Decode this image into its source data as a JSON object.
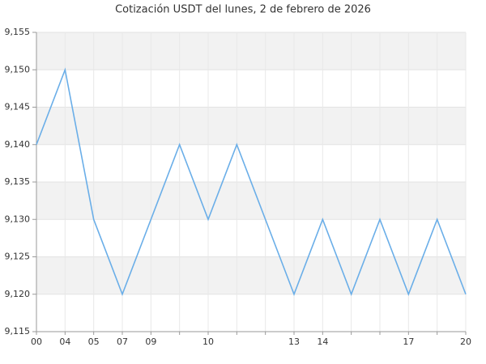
{
  "chart_data": {
    "type": "line",
    "title": "Cotización USDT del lunes, 2 de febrero de 2026",
    "categories": [
      "00",
      "04",
      "05",
      "07",
      "09",
      null,
      "10",
      null,
      null,
      "13",
      "14",
      null,
      null,
      "17",
      null,
      "20"
    ],
    "series": [
      {
        "color": "#6aaee8",
        "values": [
          9.14,
          9.15,
          9.13,
          9.12,
          9.13,
          9.14,
          9.13,
          9.14,
          9.13,
          9.12,
          9.13,
          9.12,
          9.13,
          9.12,
          9.13,
          9.12
        ]
      }
    ],
    "ylim": [
      9.115,
      9.155
    ],
    "yticks": [
      {
        "value": 9.115,
        "label": "9,115"
      },
      {
        "value": 9.12,
        "label": "9,120"
      },
      {
        "value": 9.125,
        "label": "9,125"
      },
      {
        "value": 9.13,
        "label": "9,130"
      },
      {
        "value": 9.135,
        "label": "9,135"
      },
      {
        "value": 9.14,
        "label": "9,140"
      },
      {
        "value": 9.145,
        "label": "9,145"
      },
      {
        "value": 9.15,
        "label": "9,150"
      },
      {
        "value": 9.155,
        "label": "9,155"
      }
    ],
    "grid": true
  }
}
